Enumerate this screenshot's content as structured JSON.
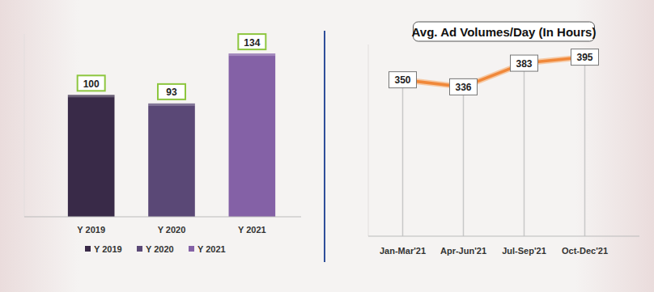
{
  "chart_data": [
    {
      "type": "bar",
      "categories": [
        "Y 2019",
        "Y 2020",
        "Y 2021"
      ],
      "values": [
        100,
        93,
        134
      ],
      "colors": [
        "#392a48",
        "#5a4876",
        "#8461a6"
      ],
      "ylim": [
        0,
        150
      ],
      "data_labels": true,
      "legend": "bottom",
      "tick_labels": "x"
    },
    {
      "type": "line",
      "title": "Avg. Ad Volumes/Day (In Hours)",
      "categories": [
        "Jan-Mar'21",
        "Apr-Jun'21",
        "Jul-Sep'21",
        "Oct-Dec'21"
      ],
      "values": [
        350,
        336,
        383,
        395
      ],
      "color": "#f0883a",
      "ylim": [
        40,
        420
      ],
      "data_labels": true,
      "tick_labels": "x"
    }
  ]
}
